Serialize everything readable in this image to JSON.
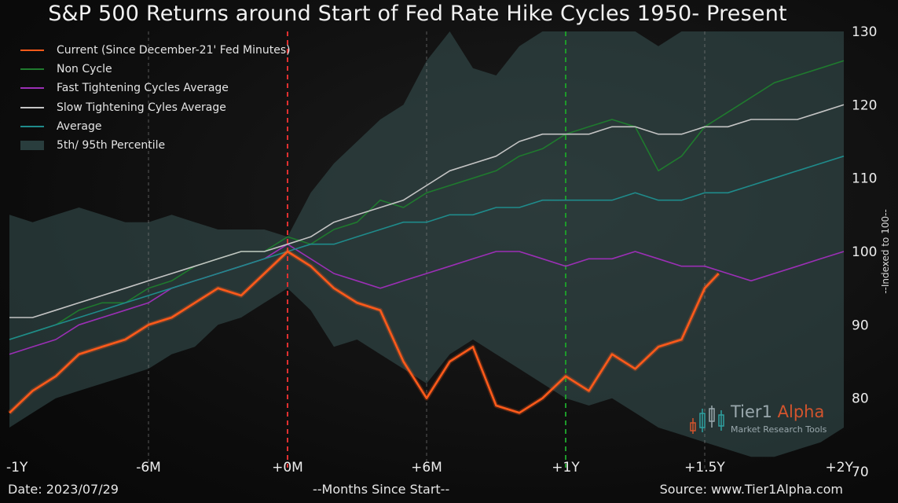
{
  "title": "S&P 500 Returns around Start of Fed Rate Hike Cycles 1950- Present",
  "footer": {
    "date": "Date: 2023/07/29",
    "xlabel": "--Months Since Start--",
    "source": "Source: www.Tier1Alpha.com"
  },
  "watermark": {
    "brand": "Tier1",
    "brand_accent": "Alpha",
    "tagline": "Market  Research Tools"
  },
  "chart_data": {
    "type": "line",
    "title": "S&P 500 Returns around Start of Fed Rate Hike Cycles 1950- Present",
    "xlabel": "--Months Since Start--",
    "ylabel": "--Indexed to 100--",
    "xlim": [
      -12,
      24
    ],
    "ylim": [
      70,
      130
    ],
    "x_ticks": [
      {
        "value": -12,
        "label": "-1Y"
      },
      {
        "value": -6,
        "label": "-6M"
      },
      {
        "value": 0,
        "label": "+0M"
      },
      {
        "value": 6,
        "label": "+6M"
      },
      {
        "value": 12,
        "label": "+1Y"
      },
      {
        "value": 18,
        "label": "+1.5Y"
      },
      {
        "value": 24,
        "label": "+2Y"
      }
    ],
    "y_ticks": [
      70,
      80,
      90,
      100,
      110,
      120,
      130
    ],
    "y_axis_side": "right",
    "vertical_lines": [
      {
        "x": 0,
        "color": "#e03030",
        "style": "dashed"
      },
      {
        "x": 12,
        "color": "#1e9a2a",
        "style": "dashed"
      }
    ],
    "legend_position": "top-left",
    "series": [
      {
        "name": "Current (Since December-21' Fed Minutes)",
        "color": "#ff5a1a",
        "x": [
          -12,
          -11,
          -10,
          -9,
          -8,
          -7,
          -6,
          -5,
          -4,
          -3,
          -2,
          -1,
          0,
          1,
          2,
          3,
          4,
          5,
          6,
          7,
          8,
          9,
          10,
          11,
          12,
          13,
          14,
          15,
          16,
          17,
          18,
          18.6
        ],
        "values": [
          78,
          81,
          83,
          86,
          87,
          88,
          90,
          91,
          93,
          95,
          94,
          97,
          100,
          98,
          95,
          93,
          92,
          85,
          80,
          85,
          87,
          79,
          78,
          80,
          83,
          81,
          86,
          84,
          87,
          88,
          95,
          97
        ]
      },
      {
        "name": "Non Cycle",
        "color": "#1f7a2e",
        "x": [
          -12,
          -11,
          -10,
          -9,
          -8,
          -7,
          -6,
          -5,
          -4,
          -3,
          -2,
          -1,
          0,
          1,
          2,
          3,
          4,
          5,
          6,
          7,
          8,
          9,
          10,
          11,
          12,
          13,
          14,
          15,
          16,
          17,
          18,
          19,
          20,
          21,
          22,
          23,
          24
        ],
        "values": [
          88,
          89,
          90,
          92,
          93,
          93,
          95,
          96,
          98,
          99,
          100,
          100,
          102,
          101,
          103,
          104,
          107,
          106,
          108,
          109,
          110,
          111,
          113,
          114,
          116,
          117,
          118,
          117,
          111,
          113,
          117,
          119,
          121,
          123,
          124,
          125,
          126
        ]
      },
      {
        "name": "Fast Tightening Cycles Average",
        "color": "#9b2fb5",
        "x": [
          -12,
          -11,
          -10,
          -9,
          -8,
          -7,
          -6,
          -5,
          -4,
          -3,
          -2,
          -1,
          0,
          1,
          2,
          3,
          4,
          5,
          6,
          7,
          8,
          9,
          10,
          11,
          12,
          13,
          14,
          15,
          16,
          17,
          18,
          19,
          20,
          21,
          22,
          23,
          24
        ],
        "values": [
          86,
          87,
          88,
          90,
          91,
          92,
          93,
          95,
          96,
          97,
          98,
          99,
          101,
          99,
          97,
          96,
          95,
          96,
          97,
          98,
          99,
          100,
          100,
          99,
          98,
          99,
          99,
          100,
          99,
          98,
          98,
          97,
          96,
          97,
          98,
          99,
          100
        ]
      },
      {
        "name": "Slow Tightening Cyles Average",
        "color": "#c4c4c4",
        "x": [
          -12,
          -11,
          -10,
          -9,
          -8,
          -7,
          -6,
          -5,
          -4,
          -3,
          -2,
          -1,
          0,
          1,
          2,
          3,
          4,
          5,
          6,
          7,
          8,
          9,
          10,
          11,
          12,
          13,
          14,
          15,
          16,
          17,
          18,
          19,
          20,
          21,
          22,
          23,
          24
        ],
        "values": [
          91,
          91,
          92,
          93,
          94,
          95,
          96,
          97,
          98,
          99,
          100,
          100,
          101,
          102,
          104,
          105,
          106,
          107,
          109,
          111,
          112,
          113,
          115,
          116,
          116,
          116,
          117,
          117,
          116,
          116,
          117,
          117,
          118,
          118,
          118,
          119,
          120
        ]
      },
      {
        "name": "Average",
        "color": "#1f8b8b",
        "x": [
          -12,
          -11,
          -10,
          -9,
          -8,
          -7,
          -6,
          -5,
          -4,
          -3,
          -2,
          -1,
          0,
          1,
          2,
          3,
          4,
          5,
          6,
          7,
          8,
          9,
          10,
          11,
          12,
          13,
          14,
          15,
          16,
          17,
          18,
          19,
          20,
          21,
          22,
          23,
          24
        ],
        "values": [
          88,
          89,
          90,
          91,
          92,
          93,
          94,
          95,
          96,
          97,
          98,
          99,
          100,
          101,
          101,
          102,
          103,
          104,
          104,
          105,
          105,
          106,
          106,
          107,
          107,
          107,
          107,
          108,
          107,
          107,
          108,
          108,
          109,
          110,
          111,
          112,
          113
        ]
      }
    ],
    "band": {
      "name": "5th/ 95th Percentile",
      "color": "#3c5a5a",
      "x": [
        -12,
        -11,
        -10,
        -9,
        -8,
        -7,
        -6,
        -5,
        -4,
        -3,
        -2,
        -1,
        0,
        1,
        2,
        3,
        4,
        5,
        6,
        7,
        8,
        9,
        10,
        11,
        12,
        13,
        14,
        15,
        16,
        17,
        18,
        19,
        20,
        21,
        22,
        23,
        24
      ],
      "upper": [
        105,
        104,
        105,
        106,
        105,
        104,
        104,
        105,
        104,
        103,
        103,
        103,
        102,
        108,
        112,
        115,
        118,
        120,
        126,
        130,
        125,
        124,
        128,
        130,
        132,
        133,
        134,
        133,
        128,
        130,
        132,
        131,
        130,
        131,
        132,
        133,
        134
      ],
      "lower": [
        76,
        78,
        80,
        81,
        82,
        83,
        84,
        86,
        87,
        90,
        91,
        93,
        95,
        92,
        87,
        88,
        86,
        84,
        82,
        86,
        88,
        86,
        84,
        82,
        80,
        79,
        80,
        78,
        76,
        75,
        74,
        73,
        72,
        72,
        73,
        74,
        76
      ]
    }
  }
}
